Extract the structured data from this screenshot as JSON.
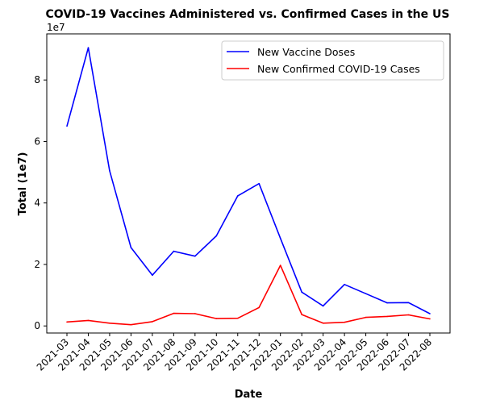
{
  "chart_data": {
    "type": "line",
    "title": "COVID-19 Vaccines Administered vs. Confirmed Cases in the US",
    "xlabel": "Date",
    "ylabel": "Total (1e7)",
    "offset_text": "1e7",
    "categories": [
      "2021-03",
      "2021-04",
      "2021-05",
      "2021-06",
      "2021-07",
      "2021-08",
      "2021-09",
      "2021-10",
      "2021-11",
      "2021-12",
      "2022-01",
      "2022-02",
      "2022-03",
      "2022-04",
      "2022-05",
      "2022-06",
      "2022-07",
      "2022-08"
    ],
    "yticks": [
      0,
      20000000,
      40000000,
      60000000,
      80000000
    ],
    "ytick_labels": [
      "0",
      "2",
      "4",
      "6",
      "8"
    ],
    "ylim": [
      -2300000,
      95000000
    ],
    "grid": false,
    "legend_position": "upper right",
    "series": [
      {
        "name": "New Vaccine Doses",
        "color": "#0000ff",
        "values": [
          65000000,
          90500000,
          50500000,
          25500000,
          16500000,
          24300000,
          22700000,
          29300000,
          42300000,
          46300000,
          28500000,
          11000000,
          6500000,
          13500000,
          10500000,
          7500000,
          7600000,
          4000000
        ]
      },
      {
        "name": "New Confirmed COVID-19 Cases",
        "color": "#ff0000",
        "values": [
          1300000,
          1800000,
          900000,
          400000,
          1400000,
          4100000,
          4000000,
          2400000,
          2500000,
          6000000,
          19700000,
          3700000,
          900000,
          1200000,
          2800000,
          3100000,
          3600000,
          2300000
        ]
      }
    ]
  }
}
